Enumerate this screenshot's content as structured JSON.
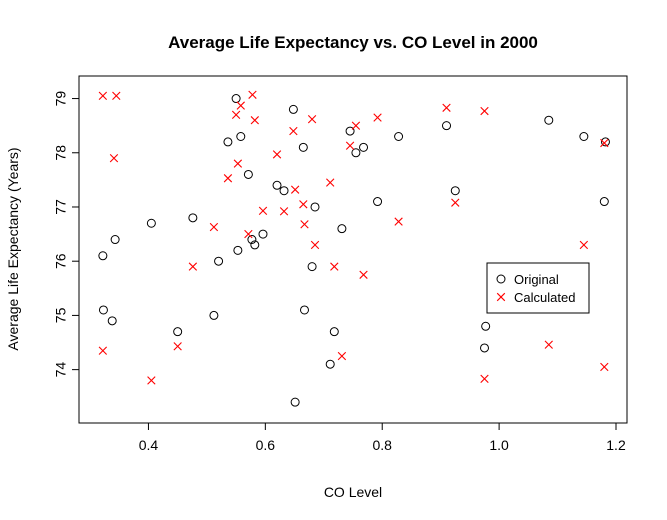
{
  "chart_data": {
    "type": "scatter",
    "title": "Average Life Expectancy vs. CO Level in 2000",
    "xlabel": "CO Level",
    "ylabel": "Average Life Expectancy (Years)",
    "xlim": [
      0.3,
      1.2
    ],
    "ylim": [
      73.2,
      79.25
    ],
    "xticks": [
      0.4,
      0.6,
      0.8,
      1.0,
      1.2
    ],
    "yticks": [
      74,
      75,
      76,
      77,
      78,
      79
    ],
    "grid": false,
    "legend_position": "right",
    "series": [
      {
        "name": "Original",
        "marker": "circle",
        "color": "#000000",
        "points": [
          [
            0.322,
            76.1
          ],
          [
            0.323,
            75.1
          ],
          [
            0.338,
            74.9
          ],
          [
            0.343,
            76.4
          ],
          [
            0.405,
            76.7
          ],
          [
            0.45,
            74.7
          ],
          [
            0.476,
            76.8
          ],
          [
            0.512,
            75.0
          ],
          [
            0.52,
            76.0
          ],
          [
            0.536,
            78.2
          ],
          [
            0.55,
            79.0
          ],
          [
            0.553,
            76.2
          ],
          [
            0.558,
            78.3
          ],
          [
            0.571,
            77.6
          ],
          [
            0.577,
            76.4
          ],
          [
            0.582,
            76.3
          ],
          [
            0.596,
            76.5
          ],
          [
            0.62,
            77.4
          ],
          [
            0.632,
            77.3
          ],
          [
            0.648,
            78.8
          ],
          [
            0.651,
            73.4
          ],
          [
            0.665,
            78.1
          ],
          [
            0.667,
            75.1
          ],
          [
            0.68,
            75.9
          ],
          [
            0.685,
            77.0
          ],
          [
            0.711,
            74.1
          ],
          [
            0.718,
            74.7
          ],
          [
            0.731,
            76.6
          ],
          [
            0.745,
            78.4
          ],
          [
            0.755,
            78.0
          ],
          [
            0.768,
            78.1
          ],
          [
            0.792,
            77.1
          ],
          [
            0.828,
            78.3
          ],
          [
            0.91,
            78.5
          ],
          [
            0.925,
            77.3
          ],
          [
            0.975,
            74.4
          ],
          [
            0.977,
            74.8
          ],
          [
            1.085,
            78.6
          ],
          [
            1.145,
            78.3
          ],
          [
            1.18,
            77.1
          ],
          [
            1.182,
            78.2
          ]
        ]
      },
      {
        "name": "Calculated",
        "marker": "cross",
        "color": "#ff0000",
        "points": [
          [
            0.322,
            79.05
          ],
          [
            0.345,
            79.05
          ],
          [
            0.341,
            77.9
          ],
          [
            0.322,
            74.35
          ],
          [
            0.405,
            73.8
          ],
          [
            0.45,
            74.43
          ],
          [
            0.476,
            75.9
          ],
          [
            0.512,
            76.63
          ],
          [
            0.536,
            77.53
          ],
          [
            0.55,
            78.7
          ],
          [
            0.553,
            77.8
          ],
          [
            0.558,
            78.87
          ],
          [
            0.571,
            76.5
          ],
          [
            0.578,
            79.07
          ],
          [
            0.582,
            78.6
          ],
          [
            0.596,
            76.93
          ],
          [
            0.62,
            77.97
          ],
          [
            0.632,
            76.92
          ],
          [
            0.648,
            78.4
          ],
          [
            0.651,
            77.32
          ],
          [
            0.665,
            77.05
          ],
          [
            0.667,
            76.68
          ],
          [
            0.68,
            78.62
          ],
          [
            0.685,
            76.3
          ],
          [
            0.711,
            77.45
          ],
          [
            0.718,
            75.9
          ],
          [
            0.731,
            74.25
          ],
          [
            0.745,
            78.13
          ],
          [
            0.755,
            78.5
          ],
          [
            0.768,
            75.75
          ],
          [
            0.792,
            78.65
          ],
          [
            0.828,
            76.73
          ],
          [
            0.91,
            78.83
          ],
          [
            0.925,
            77.08
          ],
          [
            0.975,
            78.77
          ],
          [
            0.975,
            73.83
          ],
          [
            1.085,
            74.46
          ],
          [
            1.145,
            76.3
          ],
          [
            1.18,
            74.05
          ],
          [
            1.18,
            78.18
          ]
        ]
      }
    ]
  }
}
